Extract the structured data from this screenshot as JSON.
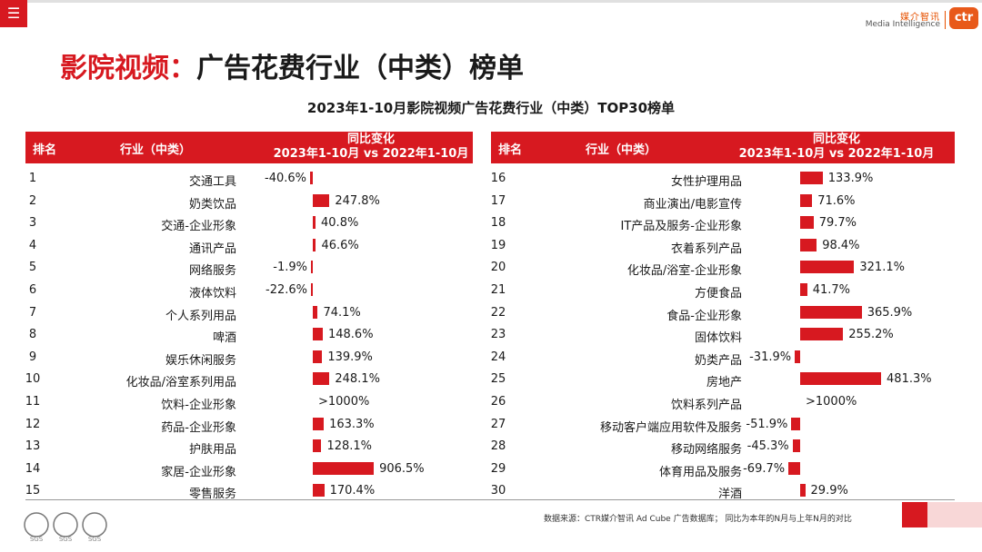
{
  "header": {
    "menu_icon": "hamburger-icon",
    "logo_cn": "媒介智讯",
    "logo_en": "Media Intelligence",
    "logo_mark": "ctr",
    "title_prefix": "影院视频：",
    "title_main": "广告花费行业（中类）榜单"
  },
  "subtitle": "2023年1-10月影院视频广告花费行业（中类）TOP30榜单",
  "table": {
    "col_rank": "排名",
    "col_industry": "行业（中类）",
    "col_change_line1": "同比变化",
    "col_change_line2": "2023年1-10月 vs 2022年1-10月"
  },
  "chart_data": {
    "type": "bar",
    "title": "2023年1-10月影院视频广告花费行业（中类）TOP30榜单",
    "unit": "%",
    "note": ">1000% values shown as text without bar",
    "left": [
      {
        "rank": "1",
        "industry": "交通工具",
        "value": -40.6,
        "label": "-40.6%"
      },
      {
        "rank": "2",
        "industry": "奶类饮品",
        "value": 247.8,
        "label": "247.8%"
      },
      {
        "rank": "3",
        "industry": "交通-企业形象",
        "value": 40.8,
        "label": "40.8%"
      },
      {
        "rank": "4",
        "industry": "通讯产品",
        "value": 46.6,
        "label": "46.6%"
      },
      {
        "rank": "5",
        "industry": "网络服务",
        "value": -1.9,
        "label": "-1.9%"
      },
      {
        "rank": "6",
        "industry": "液体饮料",
        "value": -22.6,
        "label": "-22.6%"
      },
      {
        "rank": "7",
        "industry": "个人系列用品",
        "value": 74.1,
        "label": "74.1%"
      },
      {
        "rank": "8",
        "industry": "啤酒",
        "value": 148.6,
        "label": "148.6%"
      },
      {
        "rank": "9",
        "industry": "娱乐休闲服务",
        "value": 139.9,
        "label": "139.9%"
      },
      {
        "rank": "10",
        "industry": "化妆品/浴室系列用品",
        "value": 248.1,
        "label": "248.1%"
      },
      {
        "rank": "11",
        "industry": "饮料-企业形象",
        "value": null,
        "label": ">1000%"
      },
      {
        "rank": "12",
        "industry": "药品-企业形象",
        "value": 163.3,
        "label": "163.3%"
      },
      {
        "rank": "13",
        "industry": "护肤用品",
        "value": 128.1,
        "label": "128.1%"
      },
      {
        "rank": "14",
        "industry": "家居-企业形象",
        "value": 906.5,
        "label": "906.5%"
      },
      {
        "rank": "15",
        "industry": "零售服务",
        "value": 170.4,
        "label": "170.4%"
      }
    ],
    "right": [
      {
        "rank": "16",
        "industry": "女性护理用品",
        "value": 133.9,
        "label": "133.9%"
      },
      {
        "rank": "17",
        "industry": "商业演出/电影宣传",
        "value": 71.6,
        "label": "71.6%"
      },
      {
        "rank": "18",
        "industry": "IT产品及服务-企业形象",
        "value": 79.7,
        "label": "79.7%"
      },
      {
        "rank": "19",
        "industry": "衣着系列产品",
        "value": 98.4,
        "label": "98.4%"
      },
      {
        "rank": "20",
        "industry": "化妆品/浴室-企业形象",
        "value": 321.1,
        "label": "321.1%"
      },
      {
        "rank": "21",
        "industry": "方便食品",
        "value": 41.7,
        "label": "41.7%"
      },
      {
        "rank": "22",
        "industry": "食品-企业形象",
        "value": 365.9,
        "label": "365.9%"
      },
      {
        "rank": "23",
        "industry": "固体饮料",
        "value": 255.2,
        "label": "255.2%"
      },
      {
        "rank": "24",
        "industry": "奶类产品",
        "value": -31.9,
        "label": "-31.9%"
      },
      {
        "rank": "25",
        "industry": "房地产",
        "value": 481.3,
        "label": "481.3%"
      },
      {
        "rank": "26",
        "industry": "饮料系列产品",
        "value": null,
        "label": ">1000%"
      },
      {
        "rank": "27",
        "industry": "移动客户端应用软件及服务",
        "value": -51.9,
        "label": "-51.9%"
      },
      {
        "rank": "28",
        "industry": "移动网络服务",
        "value": -45.3,
        "label": "-45.3%"
      },
      {
        "rank": "29",
        "industry": "体育用品及服务",
        "value": -69.7,
        "label": "-69.7%"
      },
      {
        "rank": "30",
        "industry": "洋酒",
        "value": 29.9,
        "label": "29.9%"
      }
    ]
  },
  "footer": {
    "source": "数据来源：CTR媒介智讯 Ad Cube 广告数据库；  同比为本年的N月与上年N月的对比",
    "cert_label": "SGS",
    "cert_icon": "certification-seal-icon"
  },
  "colors": {
    "accent": "#d71920",
    "logo": "#e8591a"
  }
}
